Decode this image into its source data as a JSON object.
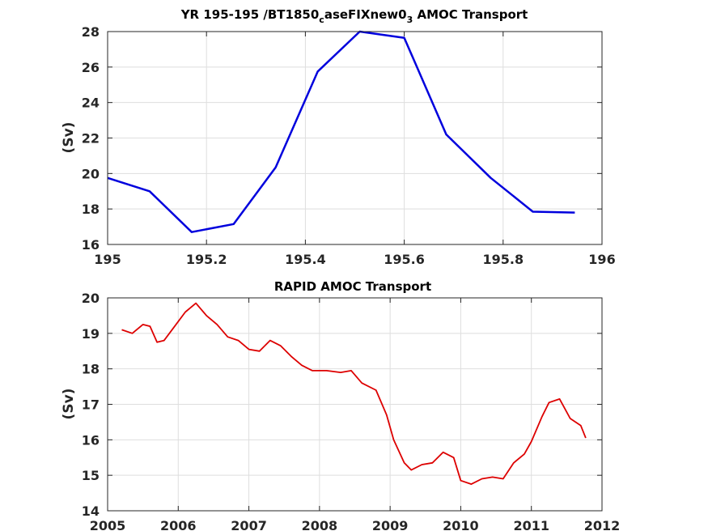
{
  "chart_data": [
    {
      "type": "line",
      "title_parts": [
        "YR 195-195 /BT1850",
        "c",
        "aseFIXnew0",
        "3",
        " AMOC Transport"
      ],
      "ylabel": "(Sv)",
      "xlim": [
        195,
        196
      ],
      "ylim": [
        16,
        28
      ],
      "xticks": [
        195,
        195.2,
        195.4,
        195.6,
        195.8,
        196
      ],
      "xtick_labels": [
        "195",
        "195.2",
        "195.4",
        "195.6",
        "195.8",
        "196"
      ],
      "yticks": [
        16,
        18,
        20,
        22,
        24,
        26,
        28
      ],
      "ytick_labels": [
        "16",
        "18",
        "20",
        "22",
        "24",
        "26",
        "28"
      ],
      "grid": true,
      "series": [
        {
          "color": "#0000dd",
          "x": [
            195.0,
            195.085,
            195.17,
            195.255,
            195.34,
            195.425,
            195.51,
            195.6,
            195.685,
            195.775,
            195.86,
            195.945
          ],
          "y": [
            19.75,
            19.0,
            16.7,
            17.15,
            20.35,
            25.75,
            28.0,
            27.65,
            22.2,
            19.75,
            17.85,
            17.8
          ]
        }
      ]
    },
    {
      "type": "line",
      "title": "RAPID AMOC Transport",
      "ylabel": "(Sv)",
      "xlim": [
        2005,
        2012
      ],
      "ylim": [
        14,
        20
      ],
      "xticks": [
        2005,
        2006,
        2007,
        2008,
        2009,
        2010,
        2011,
        2012
      ],
      "xtick_labels": [
        "2005",
        "2006",
        "2007",
        "2008",
        "2009",
        "2010",
        "2011",
        "2012"
      ],
      "yticks": [
        14,
        15,
        16,
        17,
        18,
        19,
        20
      ],
      "ytick_labels": [
        "14",
        "15",
        "16",
        "17",
        "18",
        "19",
        "20"
      ],
      "grid": true,
      "series": [
        {
          "color": "#dd0000",
          "x": [
            2005.2,
            2005.35,
            2005.5,
            2005.6,
            2005.7,
            2005.8,
            2005.95,
            2006.1,
            2006.25,
            2006.4,
            2006.55,
            2006.7,
            2006.85,
            2007.0,
            2007.15,
            2007.3,
            2007.45,
            2007.6,
            2007.75,
            2007.9,
            2008.1,
            2008.3,
            2008.45,
            2008.6,
            2008.8,
            2008.95,
            2009.05,
            2009.2,
            2009.3,
            2009.45,
            2009.6,
            2009.75,
            2009.9,
            2010.0,
            2010.15,
            2010.3,
            2010.45,
            2010.6,
            2010.75,
            2010.9,
            2011.0,
            2011.15,
            2011.25,
            2011.4,
            2011.55,
            2011.7,
            2011.77
          ],
          "y": [
            19.1,
            19.0,
            19.25,
            19.2,
            18.75,
            18.8,
            19.2,
            19.6,
            19.85,
            19.5,
            19.25,
            18.9,
            18.8,
            18.55,
            18.5,
            18.8,
            18.65,
            18.35,
            18.1,
            17.95,
            17.95,
            17.9,
            17.95,
            17.6,
            17.4,
            16.7,
            16.0,
            15.35,
            15.15,
            15.3,
            15.35,
            15.65,
            15.5,
            14.85,
            14.75,
            14.9,
            14.95,
            14.9,
            15.35,
            15.6,
            15.95,
            16.65,
            17.05,
            17.15,
            16.6,
            16.4,
            16.05
          ]
        }
      ]
    }
  ]
}
